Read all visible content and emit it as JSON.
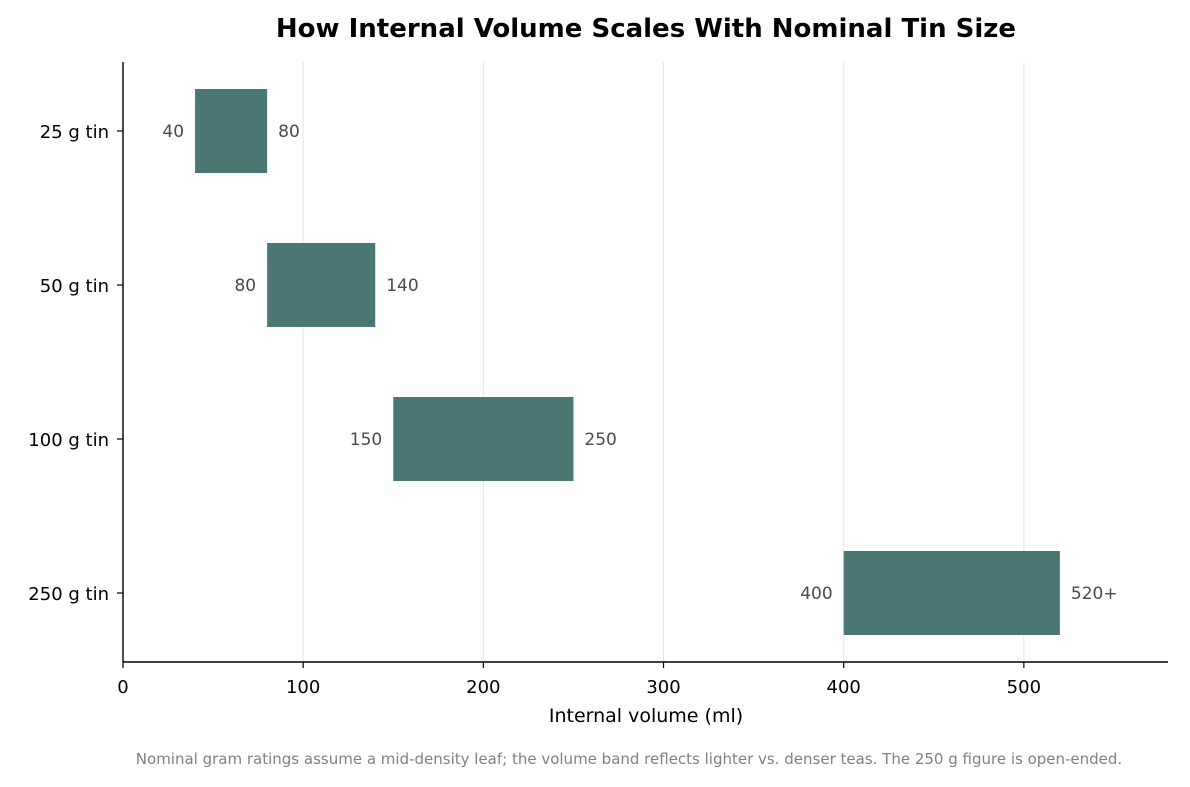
{
  "chart_data": {
    "type": "bar",
    "orientation": "horizontal-range",
    "title": "How Internal Volume Scales With Nominal Tin Size",
    "xlabel": "Internal volume (ml)",
    "ylabel": "",
    "xlim": [
      0,
      580
    ],
    "x_ticks": [
      0,
      100,
      200,
      300,
      400,
      500
    ],
    "grid": "vertical",
    "bar_color": "#4a7673",
    "categories": [
      "25 g tin",
      "50 g tin",
      "100 g tin",
      "250 g tin"
    ],
    "ranges": [
      {
        "start": 40,
        "end": 80,
        "start_label": "40",
        "end_label": "80"
      },
      {
        "start": 80,
        "end": 140,
        "start_label": "80",
        "end_label": "140"
      },
      {
        "start": 150,
        "end": 250,
        "start_label": "150",
        "end_label": "250"
      },
      {
        "start": 400,
        "end": 520,
        "start_label": "400",
        "end_label": "520+"
      }
    ],
    "footnote": "Nominal gram ratings assume a mid-density leaf; the volume band reflects lighter vs. denser teas. The 250 g figure is open-ended."
  }
}
